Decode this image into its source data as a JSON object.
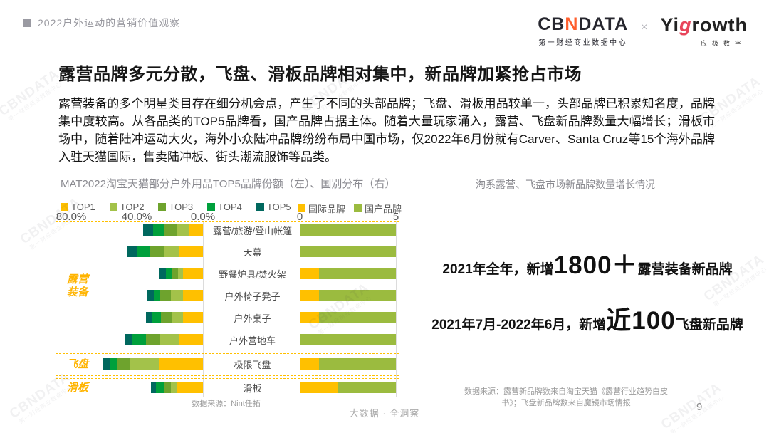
{
  "page": {
    "eyebrow": "2022户外运动的营销价值观察",
    "page_number": "9",
    "footer_center": "大数据 · 全洞察",
    "watermark": {
      "text": "CBNDATA",
      "tagline": "第一财经商业数据中心"
    }
  },
  "logos": {
    "cbn": {
      "prefix": "CB",
      "accent": "N",
      "suffix": "DATA",
      "tagline": "第一财经商业数据中心",
      "accent_color": "#ff5f2e"
    },
    "separator": "×",
    "yigrowth": {
      "part1": "Yi",
      "accent": "g",
      "part2": "rowth",
      "tagline": "应极数字",
      "accent_color": "#e8455b"
    }
  },
  "headline": "露营品牌多元分散，飞盘、滑板品牌相对集中，新品牌加紧抢占市场",
  "body": "露营装备的多个明星类目存在细分机会点，产生了不同的头部品牌；飞盘、滑板用品较单一，头部品牌已积累知名度，品牌集中度较高。从各品类的TOP5品牌看，国产品牌占据主体。随着大量玩家涌入，露营、飞盘新品牌数量大幅增长；滑板市场中，随着陆冲运动大火，海外小众陆冲品牌纷纷布局中国市场，仅2022年6月份就有Carver、Santa Cruz等15个海外品牌入驻天猫国际，售卖陆冲板、街头潮流服饰等品类。",
  "chart_data": {
    "type": "bar",
    "title_left": "MAT2022淘宝天猫部分户外用品TOP5品牌份额（左）、国别分布（右）",
    "title_right": "淘系露营、飞盘市场新品牌数量增长情况",
    "legend_left": [
      {
        "label": "TOP1",
        "color": "#FFC000"
      },
      {
        "label": "TOP2",
        "color": "#A3C24A"
      },
      {
        "label": "TOP3",
        "color": "#6EA32D"
      },
      {
        "label": "TOP4",
        "color": "#00A03C"
      },
      {
        "label": "TOP5",
        "color": "#00685E"
      }
    ],
    "legend_right": [
      {
        "label": "国际品牌",
        "color": "#FFC000"
      },
      {
        "label": "国产品牌",
        "color": "#9BBB3F"
      }
    ],
    "left_axis_ticks": [
      "80.0%",
      "40.0%",
      "0.0%"
    ],
    "left_xlim": [
      0,
      80
    ],
    "right_axis_ticks": [
      "0",
      "5"
    ],
    "right_xlim": [
      0,
      5
    ],
    "groups": [
      {
        "label": "露营装备",
        "row_indexes": [
          0,
          1,
          2,
          3,
          4,
          5
        ]
      },
      {
        "label": "飞盘",
        "row_indexes": [
          6
        ]
      },
      {
        "label": "滑板",
        "row_indexes": [
          7
        ]
      }
    ],
    "rows": [
      {
        "category": "露营/旅游/登山帐篷",
        "share_pct": {
          "TOP1": 8.5,
          "TOP2": 7.7,
          "TOP3": 7.2,
          "TOP4": 6.8,
          "TOP5": 6.0
        },
        "origin_count": {
          "国际品牌": 0,
          "国产品牌": 5
        }
      },
      {
        "category": "天幕",
        "share_pct": {
          "TOP1": 14.9,
          "TOP2": 8.9,
          "TOP3": 8.1,
          "TOP4": 7.7,
          "TOP5": 6.4
        },
        "origin_count": {
          "国际品牌": 0,
          "国产品牌": 5
        }
      },
      {
        "category": "野餐炉具/焚火架",
        "share_pct": {
          "TOP1": 11.9,
          "TOP2": 3.4,
          "TOP3": 3.8,
          "TOP4": 3.4,
          "TOP5": 3.8
        },
        "origin_count": {
          "国际品牌": 1,
          "国产品牌": 4
        }
      },
      {
        "category": "户外椅子凳子",
        "share_pct": {
          "TOP1": 11.9,
          "TOP2": 7.7,
          "TOP3": 6.4,
          "TOP4": 3.8,
          "TOP5": 4.3
        },
        "origin_count": {
          "国际品牌": 1,
          "国产品牌": 4
        }
      },
      {
        "category": "户外桌子",
        "share_pct": {
          "TOP1": 11.9,
          "TOP2": 7.2,
          "TOP3": 6.4,
          "TOP4": 5.1,
          "TOP5": 3.8
        },
        "origin_count": {
          "国际品牌": 1,
          "国产品牌": 4
        }
      },
      {
        "category": "户外营地车",
        "share_pct": {
          "TOP1": 14.9,
          "TOP2": 11.1,
          "TOP3": 8.5,
          "TOP4": 8.1,
          "TOP5": 5.1
        },
        "origin_count": {
          "国际品牌": 0,
          "国产品牌": 5
        }
      },
      {
        "category": "极限飞盘",
        "share_pct": {
          "TOP1": 26.8,
          "TOP2": 17.9,
          "TOP3": 7.7,
          "TOP4": 4.3,
          "TOP5": 3.8
        },
        "origin_count": {
          "国际品牌": 1,
          "国产品牌": 4
        }
      },
      {
        "category": "滑板",
        "share_pct": {
          "TOP1": 15.7,
          "TOP2": 3.8,
          "TOP3": 4.3,
          "TOP4": 4.7,
          "TOP5": 3.0
        },
        "origin_count": {
          "国际品牌": 2,
          "国产品牌": 3
        }
      }
    ]
  },
  "annotations": [
    {
      "prefix": "2021年全年，新增",
      "big": "1800＋",
      "suffix": "露营装备新品牌"
    },
    {
      "prefix": "2021年7月-2022年6月，新增",
      "big": "近100",
      "suffix": "飞盘新品牌"
    }
  ],
  "sources": {
    "left": "数据来源：Nint任拓",
    "right": "数据来源：露营新品牌数来自淘宝天猫《露营行业趋势白皮书》；飞盘新品牌数来自魔镜市场情报"
  }
}
